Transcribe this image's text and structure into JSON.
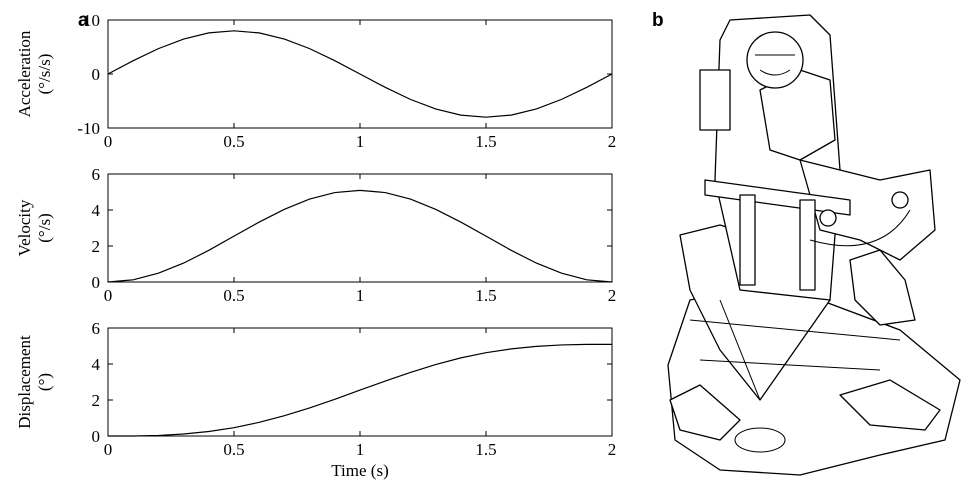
{
  "panel_labels": [
    "a",
    "b"
  ],
  "chart_data": [
    {
      "type": "line",
      "ylabel": [
        "Acceleration",
        "(°/s/s)"
      ],
      "x": [
        0,
        0.1,
        0.2,
        0.3,
        0.4,
        0.5,
        0.6,
        0.7,
        0.8,
        0.9,
        1,
        1.1,
        1.2,
        1.3,
        1.4,
        1.5,
        1.6,
        1.7,
        1.8,
        1.9,
        2
      ],
      "series": [
        {
          "color": "#000000",
          "values": [
            0,
            2.47,
            4.7,
            6.47,
            7.61,
            8,
            7.61,
            6.47,
            4.7,
            2.47,
            0,
            -2.47,
            -4.7,
            -6.47,
            -7.61,
            -8,
            -7.61,
            -6.47,
            -4.7,
            -2.47,
            0
          ]
        }
      ],
      "xlim": [
        0,
        2
      ],
      "xticks": [
        0,
        0.5,
        1,
        1.5,
        2
      ],
      "ylim": [
        -10,
        10
      ],
      "yticks": [
        -10,
        0,
        10
      ]
    },
    {
      "type": "line",
      "ylabel": [
        "Velocity",
        "(°/s)"
      ],
      "x": [
        0,
        0.1,
        0.2,
        0.3,
        0.4,
        0.5,
        0.6,
        0.7,
        0.8,
        0.9,
        1,
        1.1,
        1.2,
        1.3,
        1.4,
        1.5,
        1.6,
        1.7,
        1.8,
        1.9,
        2
      ],
      "series": [
        {
          "color": "#000000",
          "values": [
            0,
            0.12,
            0.49,
            1.05,
            1.76,
            2.55,
            3.33,
            4.04,
            4.61,
            4.97,
            5.09,
            4.97,
            4.61,
            4.04,
            3.33,
            2.55,
            1.76,
            1.05,
            0.49,
            0.12,
            0
          ]
        }
      ],
      "xlim": [
        0,
        2
      ],
      "xticks": [
        0,
        0.5,
        1,
        1.5,
        2
      ],
      "ylim": [
        0,
        6
      ],
      "yticks": [
        0,
        2,
        4,
        6
      ]
    },
    {
      "type": "line",
      "ylabel": [
        "Displacement",
        "(°)"
      ],
      "xlabel": "Time (s)",
      "x": [
        0,
        0.1,
        0.2,
        0.3,
        0.4,
        0.5,
        0.6,
        0.7,
        0.8,
        0.9,
        1,
        1.1,
        1.2,
        1.3,
        1.4,
        1.5,
        1.6,
        1.7,
        1.8,
        1.9,
        2
      ],
      "series": [
        {
          "color": "#000000",
          "values": [
            0,
            0,
            0.03,
            0.11,
            0.25,
            0.46,
            0.76,
            1.13,
            1.56,
            2.04,
            2.55,
            3.05,
            3.53,
            3.97,
            4.34,
            4.63,
            4.84,
            4.98,
            5.06,
            5.09,
            5.09
          ]
        }
      ],
      "xlim": [
        0,
        2
      ],
      "xticks": [
        0,
        0.5,
        1,
        1.5,
        2
      ],
      "ylim": [
        0,
        6
      ],
      "yticks": [
        0,
        2,
        4,
        6
      ]
    }
  ]
}
